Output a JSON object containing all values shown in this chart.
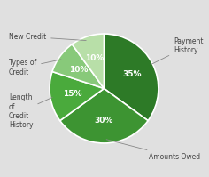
{
  "slices": [
    {
      "label": "Payment\nHistory",
      "value": 35,
      "color": "#2d7a27",
      "pct_label": "35%"
    },
    {
      "label": "Amounts Owed",
      "value": 30,
      "color": "#3d9432",
      "pct_label": "30%"
    },
    {
      "label": "Length\nof\nCredit\nHistory",
      "value": 15,
      "color": "#4aaa3c",
      "pct_label": "15%"
    },
    {
      "label": "Types of\nCredit",
      "value": 10,
      "color": "#88c97a",
      "pct_label": "10%"
    },
    {
      "label": "New Credit",
      "value": 10,
      "color": "#b8dfa8",
      "pct_label": "10%"
    }
  ],
  "background_color": "#e0e0e0",
  "edge_color": "#ffffff",
  "text_color": "#444444",
  "start_angle": 90,
  "figsize": [
    2.36,
    1.99
  ],
  "dpi": 100
}
